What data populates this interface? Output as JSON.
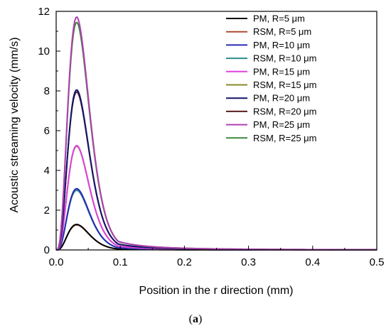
{
  "figure": {
    "caption_open": "(",
    "caption_bold": "a",
    "caption_close": ")"
  },
  "chart_data": {
    "type": "line",
    "xlabel": "Position in the r direction (mm)",
    "ylabel": "Acoustic streaming velocity (mm/s)",
    "xlim": [
      0.0,
      0.5
    ],
    "ylim": [
      0,
      12
    ],
    "xticks": [
      "0.0",
      "0.1",
      "0.2",
      "0.3",
      "0.4",
      "0.5"
    ],
    "yticks": [
      "0",
      "2",
      "4",
      "6",
      "8",
      "10",
      "12"
    ],
    "grid": false,
    "legend_position": "top-right",
    "peak_x": 0.032,
    "shape_beta": 3.6,
    "series": [
      {
        "name": "PM, R=5 μm",
        "color": "#000000",
        "peak": 1.28,
        "tail_end": 0.05
      },
      {
        "name": "RSM, R=5 μm",
        "color": "#b04a2e",
        "peak": 1.26,
        "tail_end": 0.05
      },
      {
        "name": "PM, R=10 μm",
        "color": "#2a2ab8",
        "peak": 3.08,
        "tail_end": 0.08
      },
      {
        "name": "RSM, R=10 μm",
        "color": "#2e8b8b",
        "peak": 3.0,
        "tail_end": 0.08
      },
      {
        "name": "PM, R=15 μm",
        "color": "#e040e0",
        "peak": 5.25,
        "tail_end": 0.1
      },
      {
        "name": "RSM, R=15 μm",
        "color": "#8a8a2a",
        "peak": 5.22,
        "tail_end": 0.1
      },
      {
        "name": "PM, R=20 μm",
        "color": "#14146e",
        "peak": 8.05,
        "tail_end": 0.12
      },
      {
        "name": "RSM, R=20 μm",
        "color": "#5a1e1e",
        "peak": 7.95,
        "tail_end": 0.12
      },
      {
        "name": "PM, R=25 μm",
        "color": "#b040b0",
        "peak": 11.72,
        "tail_end": 0.15
      },
      {
        "name": "RSM, R=25 μm",
        "color": "#3c8a3c",
        "peak": 11.45,
        "tail_end": 0.15
      }
    ]
  }
}
